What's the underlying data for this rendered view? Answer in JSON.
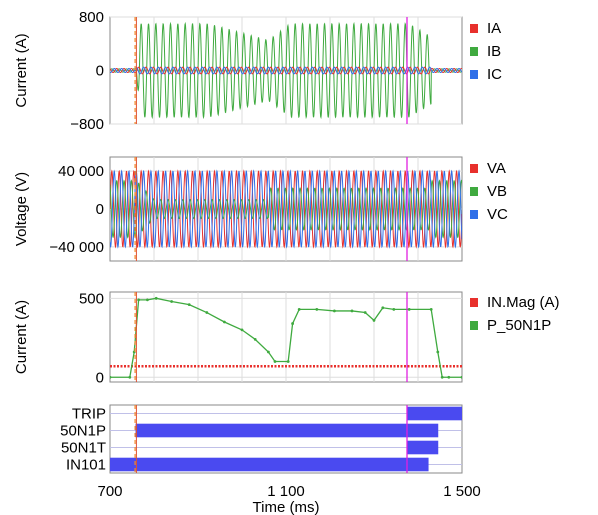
{
  "chart_data": [
    {
      "type": "line",
      "ylabel": "Current (A)",
      "ylim": [
        -800,
        800
      ],
      "yticks": [
        800,
        0,
        -800
      ],
      "ytick_labels": [
        "800",
        "0",
        "−800"
      ],
      "xlim": [
        700,
        1500
      ],
      "grid": true,
      "legend_placement": "right",
      "series": [
        {
          "name": "IA",
          "color": "#e8302c",
          "description_values": {
            "amplitude_A": 30
          }
        },
        {
          "name": "IB",
          "color": "#3faa3f",
          "description_values": {
            "fault_amplitude_A": 700,
            "fault_start_ms": 760,
            "fault_end_ms": 1430
          }
        },
        {
          "name": "IC",
          "color": "#2f6fe8",
          "description_values": {
            "amplitude_A": 30
          }
        }
      ]
    },
    {
      "type": "line",
      "ylabel": "Voltage (V)",
      "ylim": [
        -55000,
        55000
      ],
      "yticks": [
        40000,
        0,
        -40000
      ],
      "ytick_labels": [
        "40 000",
        "0",
        "−40 000"
      ],
      "xlim": [
        700,
        1500
      ],
      "grid": true,
      "legend_placement": "right",
      "series": [
        {
          "name": "VA",
          "color": "#e8302c",
          "description_values": {
            "amplitude_V": 40000
          }
        },
        {
          "name": "VB",
          "color": "#3faa3f",
          "description_values": {
            "amplitude_V": 30000,
            "fault_amplitude_V": 10000
          }
        },
        {
          "name": "VC",
          "color": "#2f6fe8",
          "description_values": {
            "amplitude_V": 40000
          }
        }
      ]
    },
    {
      "type": "line",
      "ylabel": "Current (A)",
      "ylim": [
        -30,
        540
      ],
      "yticks": [
        500,
        0
      ],
      "ytick_labels": [
        "500",
        "0"
      ],
      "xlim": [
        700,
        1500
      ],
      "grid": true,
      "legend_placement": "right",
      "series": [
        {
          "name": "IN.Mag (A)",
          "color": "#e8302c",
          "x": [
            700,
            1500
          ],
          "y": [
            70,
            70
          ]
        },
        {
          "name": "P_50N1P",
          "color": "#3faa3f",
          "x": [
            700,
            745,
            755,
            765,
            785,
            805,
            840,
            880,
            920,
            960,
            1000,
            1030,
            1060,
            1075,
            1105,
            1115,
            1130,
            1170,
            1210,
            1250,
            1280,
            1300,
            1320,
            1345,
            1380,
            1430,
            1445,
            1455,
            1470,
            1500
          ],
          "y": [
            0,
            0,
            160,
            490,
            490,
            500,
            480,
            460,
            410,
            350,
            300,
            240,
            160,
            100,
            100,
            340,
            430,
            430,
            420,
            420,
            410,
            360,
            440,
            430,
            430,
            430,
            160,
            0,
            0,
            0
          ]
        }
      ]
    },
    {
      "type": "bar",
      "subtype": "digital_status",
      "xlim": [
        700,
        1500
      ],
      "xticks": [
        700,
        1100,
        1500
      ],
      "xtick_labels": [
        "700",
        "1 100",
        "1 500"
      ],
      "xlabel": "Time (ms)",
      "categories": [
        "TRIP",
        "50N1P",
        "50N1T",
        "IN101"
      ],
      "color": "#4a4af0",
      "intervals": [
        {
          "name": "TRIP",
          "start": 1375,
          "end": 1500
        },
        {
          "name": "50N1P",
          "start": 758,
          "end": 1446
        },
        {
          "name": "50N1T",
          "start": 1375,
          "end": 1446
        },
        {
          "name": "IN101",
          "start": 700,
          "end": 1424
        }
      ]
    }
  ],
  "markers": {
    "dashed_orange_x": 757,
    "solid_red_x": 760,
    "magenta_x": 1375,
    "colors": {
      "orange": "#f08a2a",
      "red": "#e05030",
      "magenta": "#e020e0"
    }
  },
  "signal_colors": {
    "red": "#e8302c",
    "green": "#3faa3f",
    "blue": "#2f6fe8"
  }
}
